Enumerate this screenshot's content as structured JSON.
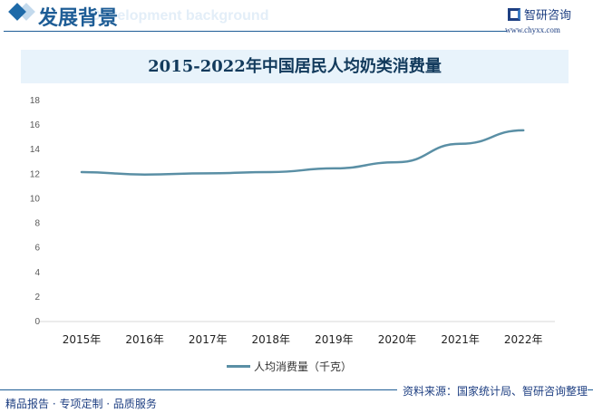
{
  "header": {
    "title": "发展背景",
    "subtitle_en": "Development background",
    "brand": "智研咨询",
    "url": "www.chyxx.com"
  },
  "chart_data": {
    "type": "line",
    "title": "2015-2022年中国居民人均奶类消费量",
    "categories": [
      "2015年",
      "2016年",
      "2017年",
      "2018年",
      "2019年",
      "2020年",
      "2021年",
      "2022年"
    ],
    "series": [
      {
        "name": "人均消费量（千克）",
        "values": [
          12.1,
          11.9,
          12.0,
          12.1,
          12.4,
          12.9,
          14.4,
          15.5
        ],
        "color": "#5a8fa5"
      }
    ],
    "yticks": [
      0,
      2,
      4,
      6,
      8,
      10,
      12,
      14,
      16,
      18
    ],
    "ylim": [
      0,
      18
    ],
    "grid": false,
    "legend": "bottom"
  },
  "footer": {
    "left": "精品报告 · 专项定制 · 品质服务",
    "source": "资料来源：国家统计局、智研咨询整理"
  }
}
